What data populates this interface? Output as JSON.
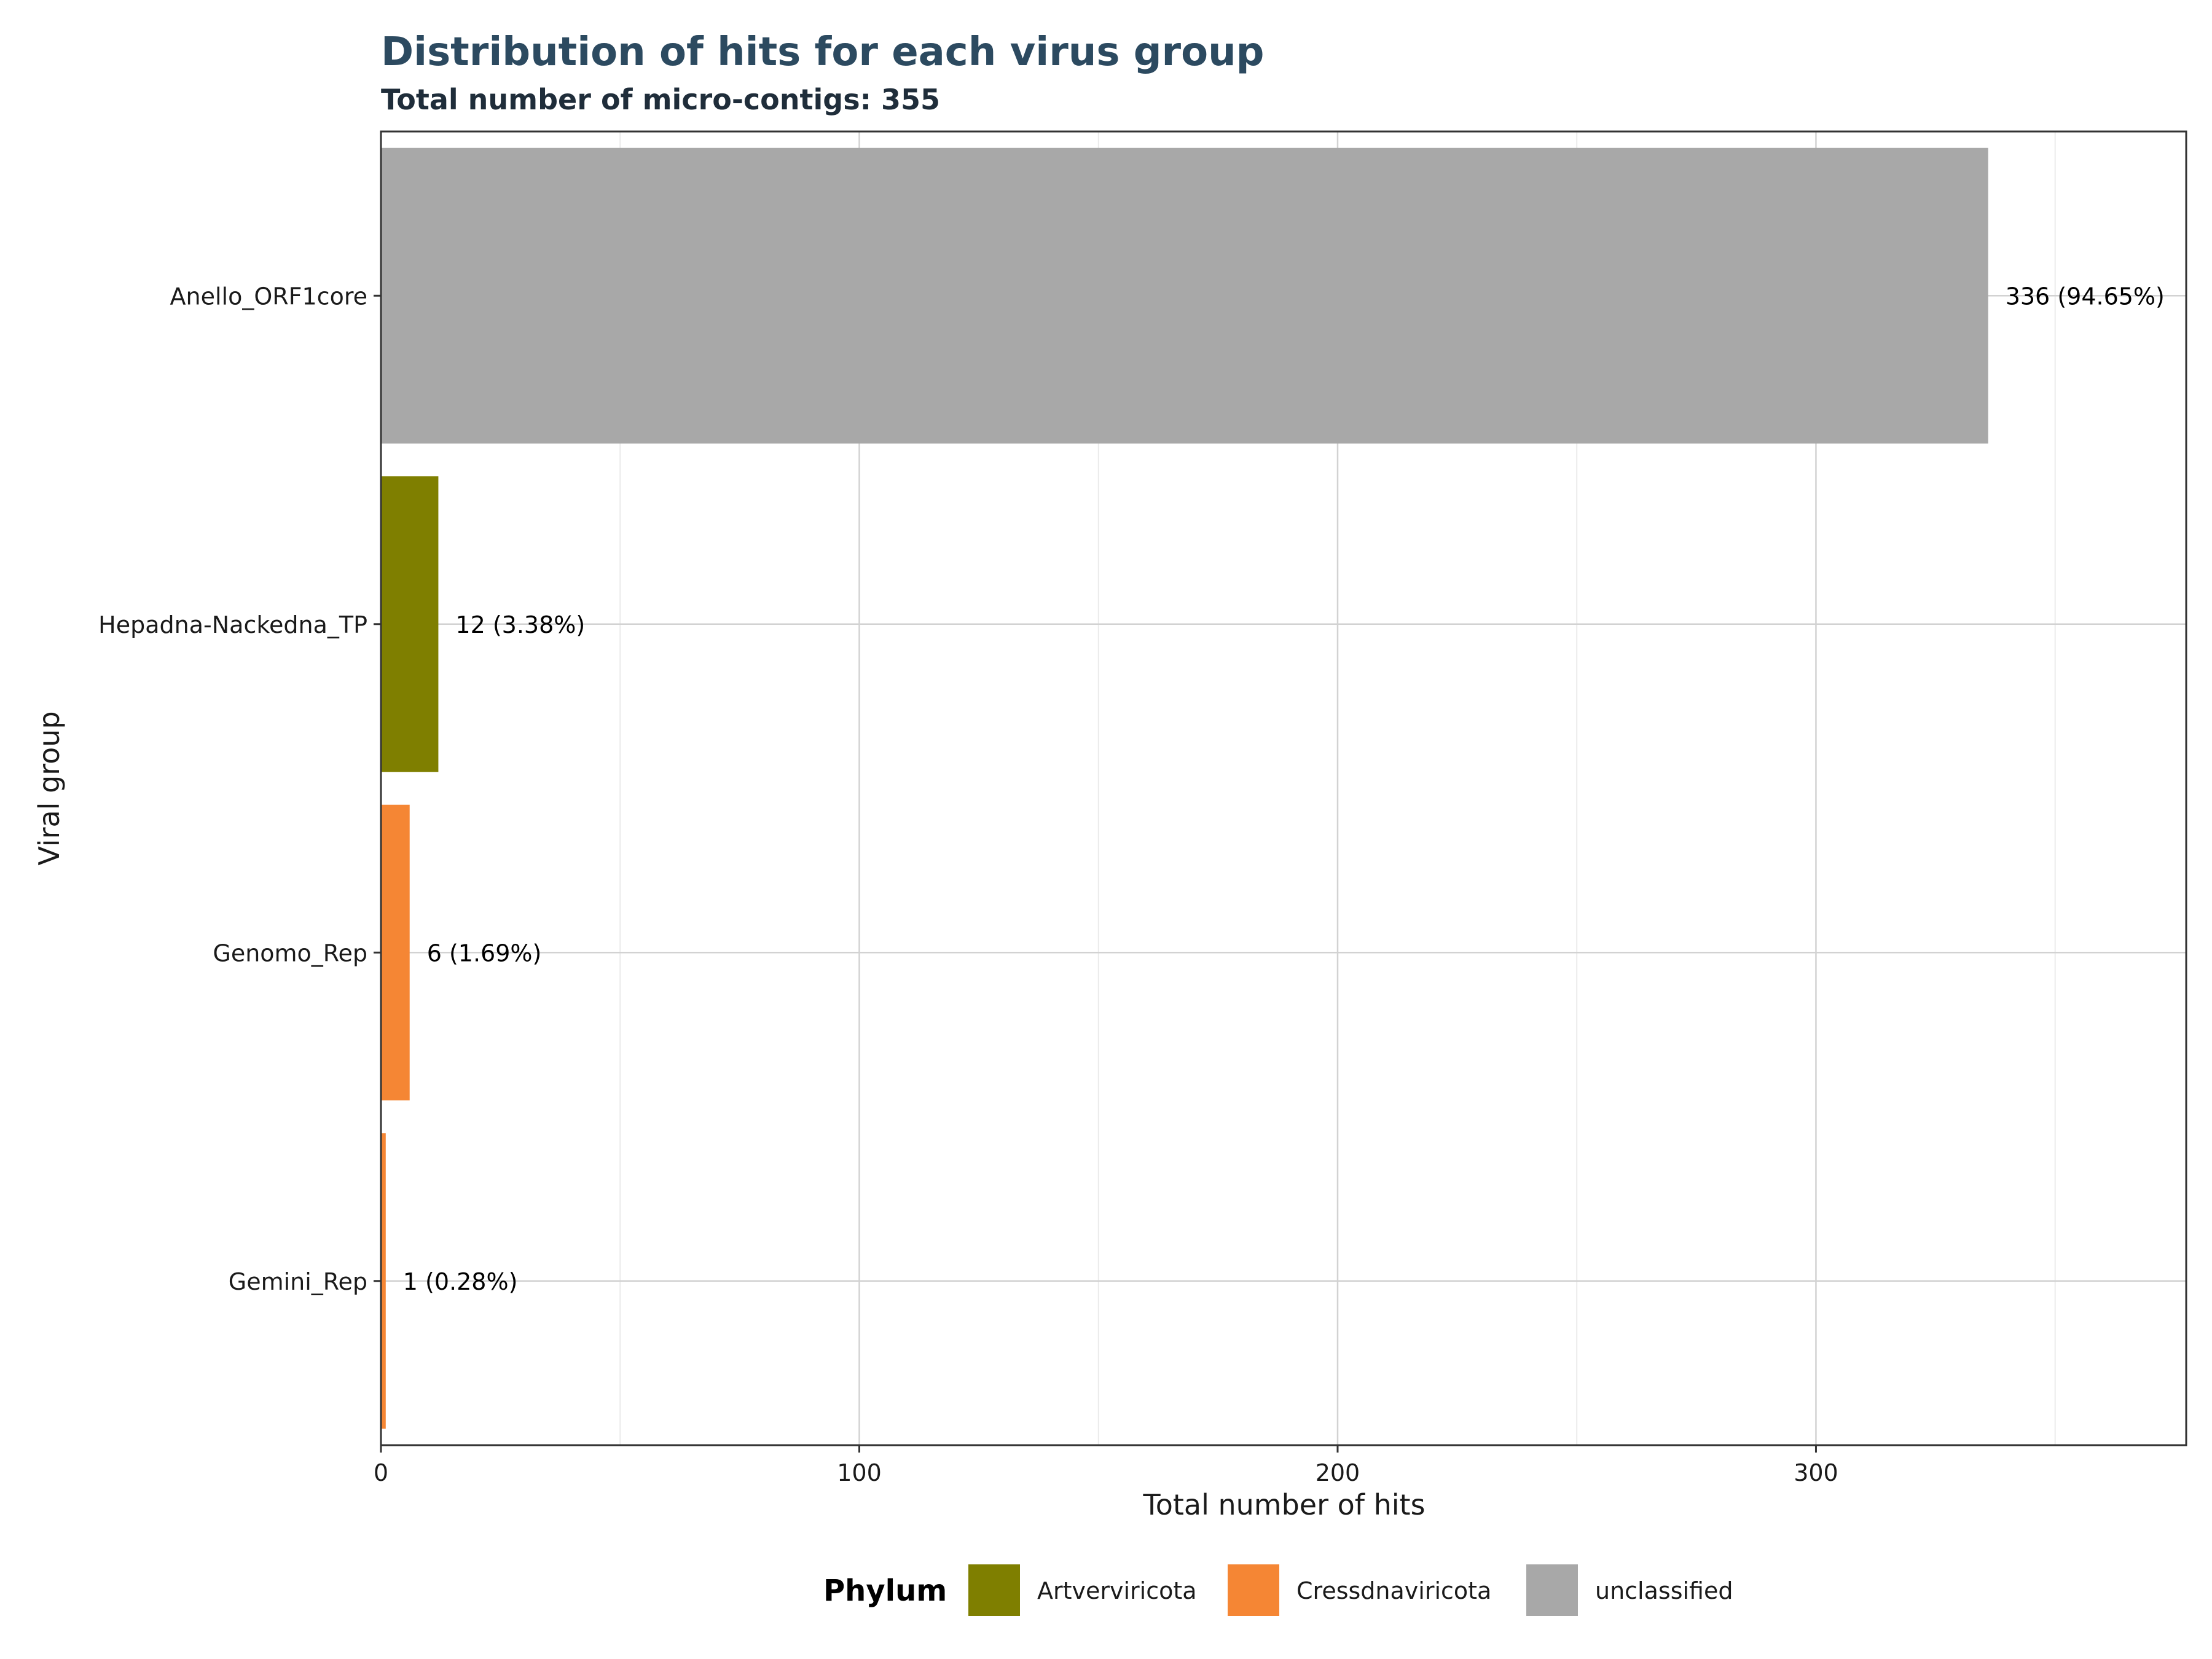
{
  "chart_data": {
    "type": "bar",
    "orientation": "horizontal",
    "title": "Distribution of hits for each virus group",
    "subtitle": "Total number of micro-contigs: 355",
    "xlabel": "Total number of hits",
    "ylabel": "Viral group",
    "xlim": [
      0,
      377.4
    ],
    "xticks": [
      0,
      100,
      200,
      300
    ],
    "grid": true,
    "categories": [
      "Anello_ORF1core",
      "Hepadna-Nackedna_TP",
      "Genomo_Rep",
      "Gemini_Rep"
    ],
    "values": [
      336,
      12,
      6,
      1
    ],
    "labels": [
      "336 (94.65%)",
      "12 (3.38%)",
      "6 (1.69%)",
      "1 (0.28%)"
    ],
    "phylum": [
      "unclassified",
      "Artverviricota",
      "Cressdnaviricota",
      "Cressdnaviricota"
    ],
    "legend": {
      "title": "Phylum",
      "placement": "bottom",
      "entries": [
        {
          "name": "Artverviricota",
          "color": "#7f7f00"
        },
        {
          "name": "Cressdnaviricota",
          "color": "#f58634"
        },
        {
          "name": "unclassified",
          "color": "#a8a8a8"
        }
      ]
    }
  }
}
